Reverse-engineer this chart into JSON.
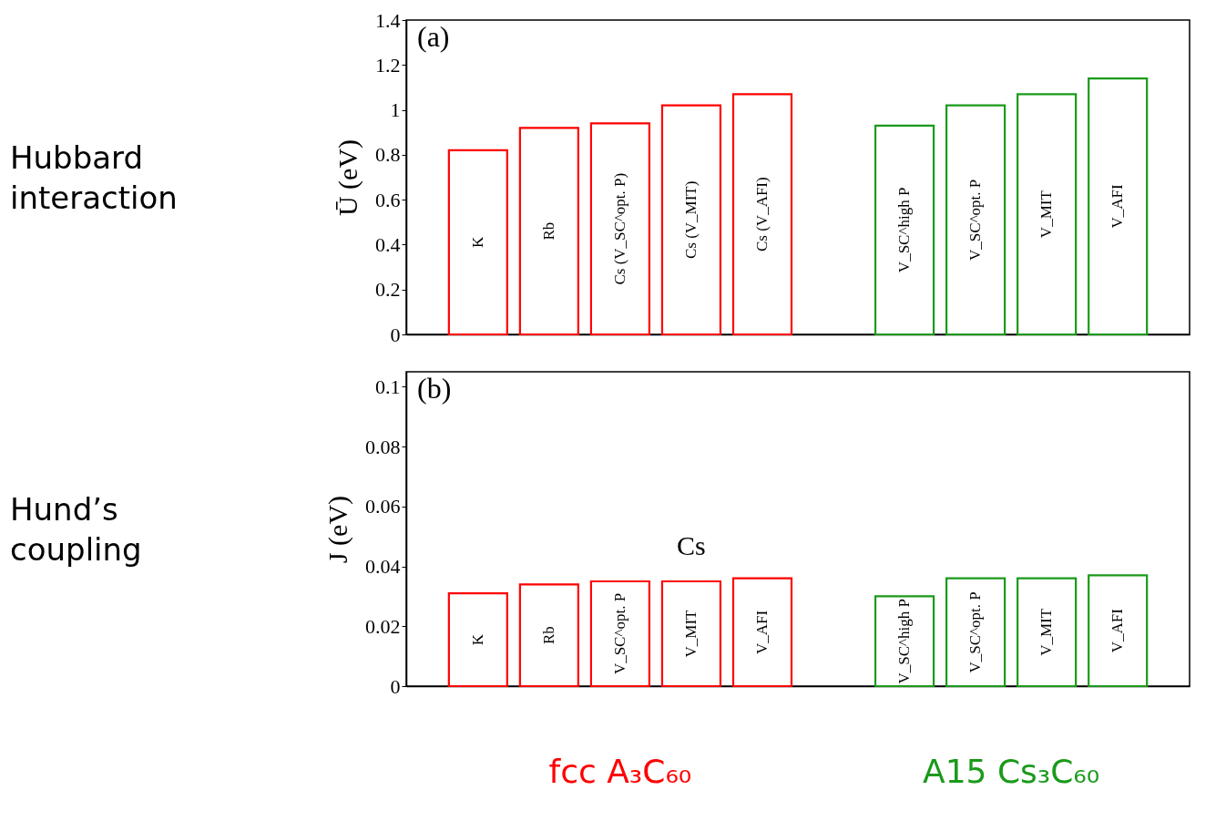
{
  "chart_data": [
    {
      "type": "bar",
      "ylabel": "Ū (eV)",
      "categories": [
        "K",
        "Rb",
        "Cs (V_SC^opt. P)",
        "Cs (V_MIT)",
        "Cs (V_AFI)",
        null,
        "V_SC^high P",
        "V_SC^opt. P",
        "V_MIT",
        "V_AFI"
      ],
      "values": [
        0.82,
        0.92,
        0.94,
        1.02,
        1.07,
        null,
        0.93,
        1.02,
        1.07,
        1.14
      ],
      "colors": [
        "#ff0000",
        "#ff0000",
        "#ff0000",
        "#ff0000",
        "#ff0000",
        null,
        "#1a9a1a",
        "#1a9a1a",
        "#1a9a1a",
        "#1a9a1a"
      ],
      "ylim": [
        0,
        1.4
      ],
      "yticks": [
        0,
        0.2,
        0.4,
        0.6,
        0.8,
        1,
        1.2,
        1.4
      ],
      "grid": false,
      "annotations": [
        "(a)",
        "Hubbard interaction"
      ]
    },
    {
      "type": "bar",
      "ylabel": "J (eV)",
      "categories": [
        "K",
        "Rb",
        "V_SC^opt. P",
        "V_MIT",
        "V_AFI",
        null,
        "V_SC^high P",
        "V_SC^opt. P",
        "V_MIT",
        "V_AFI"
      ],
      "values": [
        0.031,
        0.034,
        0.035,
        0.035,
        0.036,
        null,
        0.03,
        0.036,
        0.036,
        0.037
      ],
      "colors": [
        "#ff0000",
        "#ff0000",
        "#ff0000",
        "#ff0000",
        "#ff0000",
        null,
        "#1a9a1a",
        "#1a9a1a",
        "#1a9a1a",
        "#1a9a1a"
      ],
      "ylim": [
        0,
        0.105
      ],
      "yticks": [
        0,
        0.02,
        0.04,
        0.06,
        0.08,
        0.1
      ],
      "grid": false,
      "annotations": [
        "(b)",
        "Hund’s coupling",
        "Cs",
        "fcc A₃C₆₀",
        "A15 Cs₃C₆₀"
      ]
    }
  ]
}
